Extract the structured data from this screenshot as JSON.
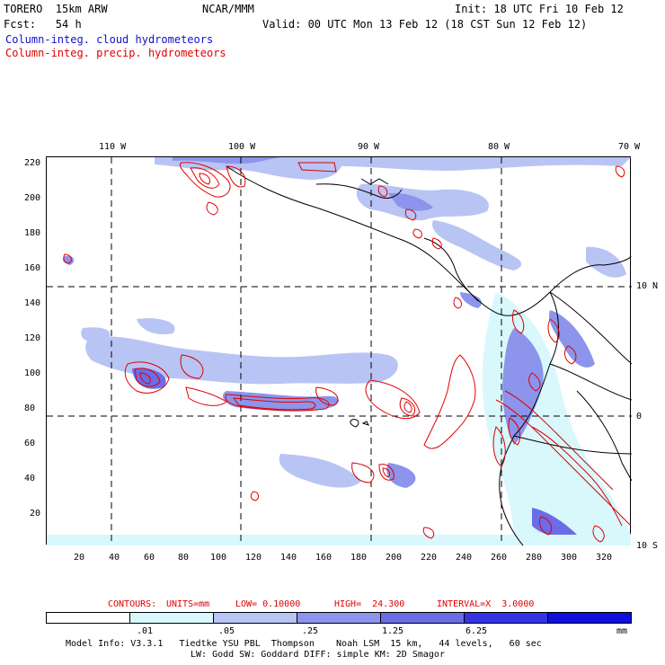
{
  "header": {
    "model": "TORERO  15km ARW",
    "org": "NCAR/MMM",
    "init": "Init: 18 UTC Fri 10 Feb 12",
    "fcst": "Fcst:   54 h",
    "valid": "Valid: 00 UTC Mon 13 Feb 12 (18 CST Sun 12 Feb 12)",
    "field1": "Column-integ. cloud hydrometeors",
    "field2": "Column-integ. precip. hydrometeors"
  },
  "map": {
    "y_ticks": [
      "220",
      "200",
      "180",
      "160",
      "140",
      "120",
      "100",
      "80",
      "60",
      "40",
      "20"
    ],
    "x_ticks": [
      "20",
      "40",
      "60",
      "80",
      "100",
      "120",
      "140",
      "160",
      "180",
      "200",
      "220",
      "240",
      "260",
      "280",
      "300",
      "320"
    ],
    "lon_labels": [
      "110 W",
      "100 W",
      "90 W",
      "80 W",
      "70 W"
    ],
    "lat_labels": [
      "10 N",
      "0",
      "10 S"
    ]
  },
  "contours": {
    "title": "CONTOURS:",
    "units": "UNITS=mm",
    "low": "LOW= 0.10000",
    "high": "HIGH=  24.300",
    "interval": "INTERVAL=X  3.0000"
  },
  "colorbar": {
    "labels": [
      ".01",
      ".05",
      ".25",
      "1.25",
      "6.25"
    ],
    "unit": "mm",
    "colors": [
      "#ffffff",
      "#d8f8fc",
      "#b8c4f4",
      "#8c94ec",
      "#6c6ce6",
      "#3434e4",
      "#1010dc"
    ]
  },
  "footer": {
    "line1": "Model Info: V3.3.1   Tiedtke YSU PBL  Thompson    Noah LSM  15 km,   44 levels,   60 sec",
    "line2": "LW: Godd SW: Goddard DIFF: simple KM: 2D Smagor"
  }
}
